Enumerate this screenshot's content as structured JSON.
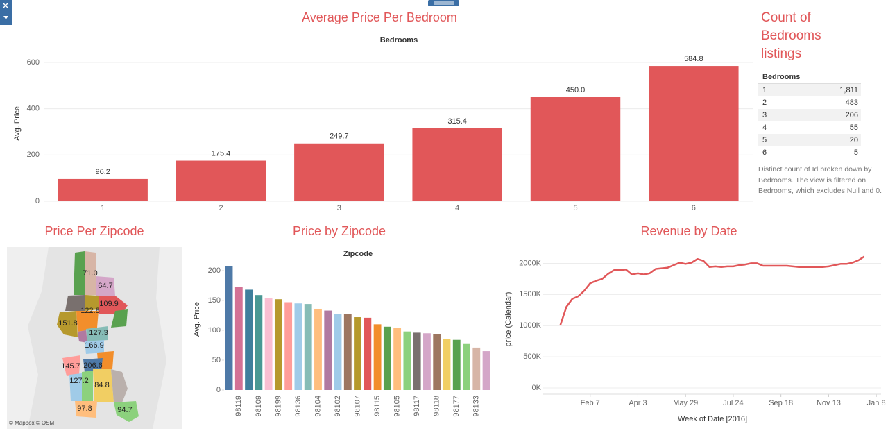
{
  "chart_data": [
    {
      "type": "bar",
      "title": "Average Price Per Bedroom",
      "x_label": "Bedrooms",
      "y_label": "Avg. Price",
      "categories": [
        "1",
        "2",
        "3",
        "4",
        "5",
        "6"
      ],
      "values": [
        96.2,
        175.4,
        249.7,
        315.4,
        450.0,
        584.8
      ],
      "value_labels": [
        "96.2",
        "175.4",
        "249.7",
        "315.4",
        "450.0",
        "584.8"
      ],
      "color": "#e15759",
      "ylim": [
        0,
        660
      ],
      "yticks": [
        0,
        200,
        400,
        600
      ],
      "grid": true
    },
    {
      "type": "bar",
      "title": "Price by Zipcode",
      "x_label": "Zipcode",
      "y_label": "Avg. Price",
      "categories": [
        null,
        "98119",
        null,
        "98109",
        null,
        "98199",
        null,
        "98136",
        null,
        "98104",
        null,
        "98102",
        null,
        "98107",
        null,
        "98115",
        null,
        "98105",
        null,
        "98117",
        null,
        "98118",
        null,
        "98177",
        null,
        "98133",
        null
      ],
      "values": [
        207,
        172,
        168,
        159,
        154,
        152,
        147,
        145,
        144,
        136,
        133,
        127,
        127,
        122,
        121,
        110,
        106,
        104,
        98,
        96,
        95,
        94,
        85,
        84,
        77,
        71,
        65
      ],
      "colors": [
        "#4e79a7",
        "#d37295",
        "#3f7f9c",
        "#499894",
        "#fabfd2",
        "#b6992d",
        "#ff9d9a",
        "#a0cbe8",
        "#86bcb6",
        "#ffbe7d",
        "#b07aa1",
        "#a0cbe8",
        "#9d7660",
        "#b6992d",
        "#e15759",
        "#f28e2b",
        "#59a14f",
        "#ffbe7d",
        "#8cd17d",
        "#79706e",
        "#d4a6c8",
        "#9d7660",
        "#f1ce63",
        "#59a14f",
        "#8cd17d",
        "#d7b5a6",
        "#d4a6c8"
      ],
      "ylim": [
        0,
        215
      ],
      "yticks": [
        0,
        50,
        100,
        150,
        200
      ],
      "grid": false
    },
    {
      "type": "line",
      "title": "Revenue by Date",
      "x_label": "Week of Date [2016]",
      "y_label": "price (Calendar)",
      "x": [
        0,
        1,
        2,
        3,
        4,
        5,
        6,
        7,
        8,
        9,
        10,
        11,
        12,
        13,
        14,
        15,
        16,
        17,
        18,
        19,
        20,
        21,
        22,
        23,
        24,
        25,
        26,
        27,
        28,
        29,
        30,
        31,
        32,
        33,
        34,
        35,
        36,
        37,
        38,
        39,
        40,
        41,
        42,
        43,
        44,
        45,
        46,
        47,
        48,
        49,
        50,
        51
      ],
      "series": [
        {
          "name": "price (Calendar)",
          "color": "#e15759",
          "values": [
            1010000,
            1300000,
            1430000,
            1470000,
            1560000,
            1680000,
            1720000,
            1750000,
            1830000,
            1890000,
            1890000,
            1900000,
            1820000,
            1840000,
            1820000,
            1840000,
            1910000,
            1920000,
            1930000,
            1970000,
            2010000,
            1990000,
            2010000,
            2070000,
            2040000,
            1940000,
            1950000,
            1940000,
            1950000,
            1950000,
            1970000,
            1980000,
            2000000,
            2000000,
            1960000,
            1960000,
            1960000,
            1960000,
            1960000,
            1950000,
            1940000,
            1940000,
            1940000,
            1940000,
            1940000,
            1950000,
            1970000,
            1990000,
            1990000,
            2010000,
            2050000,
            2110000
          ]
        }
      ],
      "xlim": [
        -3,
        53.8
      ],
      "xticks": [
        {
          "value": 5,
          "label": "Feb 7"
        },
        {
          "value": 13,
          "label": "Apr 3"
        },
        {
          "value": 21,
          "label": "May 29"
        },
        {
          "value": 29,
          "label": "Jul 24"
        },
        {
          "value": 37,
          "label": "Sep 18"
        },
        {
          "value": 45,
          "label": "Nov 13"
        },
        {
          "value": 53,
          "label": "Jan 8"
        }
      ],
      "ylim": [
        -100000,
        2250000
      ],
      "yticks": [
        {
          "value": 0,
          "label": "0K"
        },
        {
          "value": 500000,
          "label": "500K"
        },
        {
          "value": 1000000,
          "label": "1000K"
        },
        {
          "value": 1500000,
          "label": "1500K"
        },
        {
          "value": 2000000,
          "label": "2000K"
        }
      ],
      "grid": true
    }
  ],
  "table": {
    "title": "Count of Bedrooms listings",
    "header": "Bedrooms",
    "rows": [
      [
        "1",
        "1,811"
      ],
      [
        "2",
        "483"
      ],
      [
        "3",
        "206"
      ],
      [
        "4",
        "55"
      ],
      [
        "5",
        "20"
      ],
      [
        "6",
        "5"
      ]
    ],
    "caption": "Distinct count of Id broken down by Bedrooms. The view is filtered on Bedrooms, which excludes Null and 0."
  },
  "map": {
    "title": "Price Per Zipcode",
    "labels": [
      "71.0",
      "64.7",
      "109.9",
      "122.8",
      "151.8",
      "127.3",
      "166.9",
      "145.7",
      "206.6",
      "127.2",
      "84.8",
      "97.8",
      "94.7"
    ],
    "attribution": "© Mapbox © OSM"
  }
}
